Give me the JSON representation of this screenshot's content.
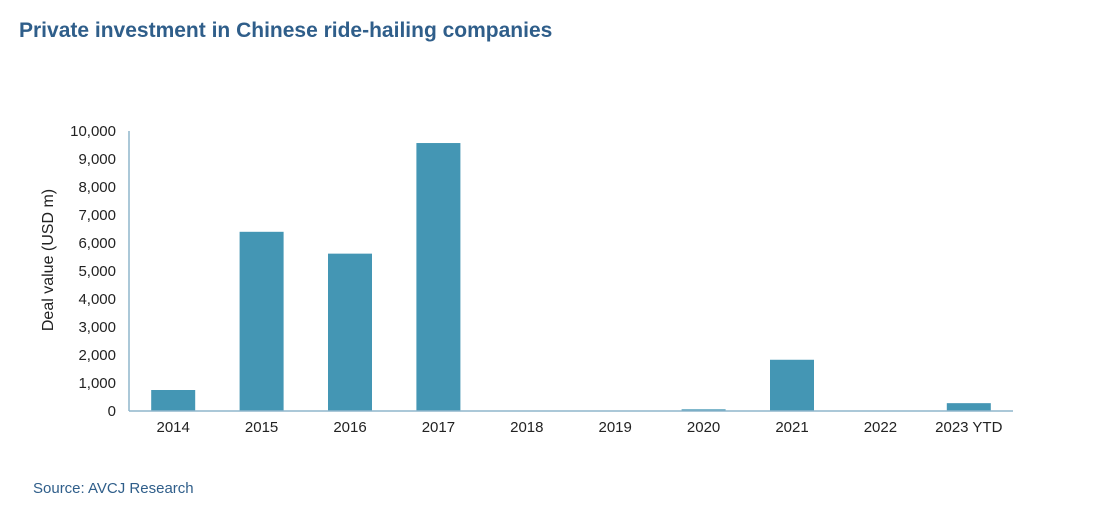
{
  "title": "Private investment in Chinese ride-hailing companies",
  "source": "Source: AVCJ Research",
  "colors": {
    "bar": "#4496b4",
    "axis": "#8fb6cc",
    "title": "#2f5e8a"
  },
  "chart_data": {
    "type": "bar",
    "title": "Private investment in Chinese ride-hailing companies",
    "xlabel": "",
    "ylabel": "Deal value (USD m)",
    "categories": [
      "2014",
      "2015",
      "2016",
      "2017",
      "2018",
      "2019",
      "2020",
      "2021",
      "2022",
      "2023 YTD"
    ],
    "values": [
      750,
      6400,
      5620,
      9570,
      10,
      0,
      60,
      1830,
      10,
      280
    ],
    "ylim": [
      0,
      10000
    ],
    "yticks": [
      0,
      1000,
      2000,
      3000,
      4000,
      5000,
      6000,
      7000,
      8000,
      9000,
      10000
    ],
    "ytick_labels": [
      "0",
      "1,000",
      "2,000",
      "3,000",
      "4,000",
      "5,000",
      "6,000",
      "7,000",
      "8,000",
      "9,000",
      "10,000"
    ],
    "grid": false,
    "legend": "none"
  }
}
